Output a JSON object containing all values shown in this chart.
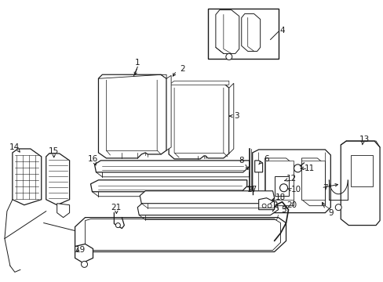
{
  "bg": "#ffffff",
  "lc": "#1a1a1a",
  "tc": "#1a1a1a",
  "fw": 4.89,
  "fh": 3.6,
  "dpi": 100
}
